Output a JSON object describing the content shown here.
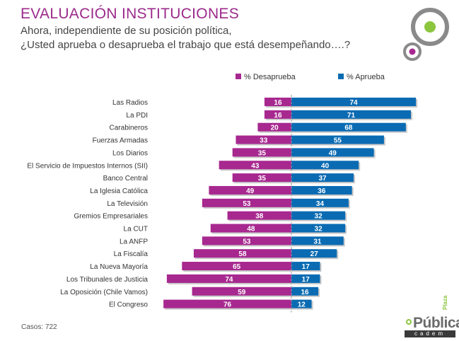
{
  "header": {
    "title": "EVALUACIÓN INSTITUCIONES",
    "subtitle_line1": "Ahora, independiente de su posición política,",
    "subtitle_line2": "¿Usted aprueba o desaprueba el trabajo que está desempeñando….?"
  },
  "footer": {
    "cases": "Casos: 722",
    "brand_name": "Pública",
    "brand_plaza": "Plaza",
    "brand_cadem": "cadem"
  },
  "colors": {
    "desaprueba": "#a7288f",
    "aprueba": "#0a6bb3",
    "title": "#9b2a8c",
    "logo_ring": "#8a8a8a",
    "logo_green": "#8cc63f",
    "logo_pink": "#a7288f"
  },
  "chart_data": {
    "type": "bar",
    "orientation": "horizontal-diverging",
    "title": "EVALUACIÓN INSTITUCIONES",
    "legend_position": "top",
    "categories": [
      "Las Radios",
      "La PDI",
      "Carabineros",
      "Fuerzas Armadas",
      "Los Diarios",
      "El Servicio de Impuestos Internos (SII)",
      "Banco Central",
      "La Iglesia Católica",
      "La Televisión",
      "Gremios Empresariales",
      "La CUT",
      "La ANFP",
      "La Fiscalía",
      "La Nueva Mayoría",
      "Los Tribunales de Justicia",
      "La Oposición (Chile Vamos)",
      "El Congreso"
    ],
    "series": [
      {
        "name": "% Desaprueba",
        "values": [
          16,
          16,
          20,
          33,
          35,
          43,
          35,
          49,
          53,
          38,
          48,
          53,
          58,
          65,
          74,
          59,
          76
        ]
      },
      {
        "name": "% Aprueba",
        "values": [
          74,
          71,
          68,
          55,
          49,
          40,
          37,
          36,
          34,
          32,
          32,
          31,
          27,
          17,
          17,
          16,
          12
        ]
      }
    ],
    "xlim": [
      0,
      100
    ]
  }
}
